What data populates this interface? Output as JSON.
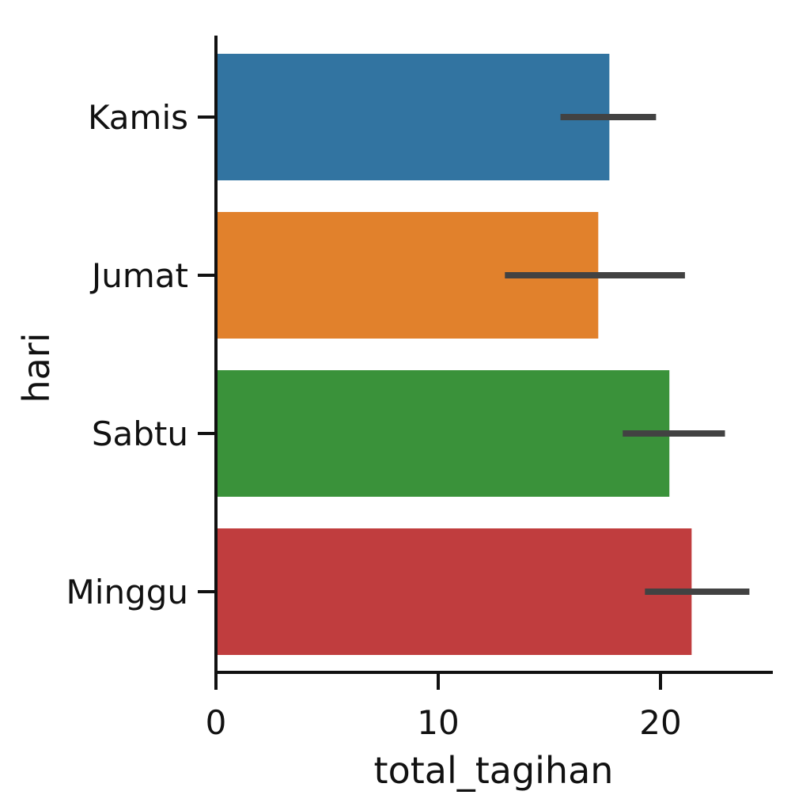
{
  "chart_data": {
    "type": "bar",
    "orientation": "horizontal",
    "title": "",
    "xlabel": "total_tagihan",
    "ylabel": "hari",
    "categories": [
      "Kamis",
      "Jumat",
      "Sabtu",
      "Minggu"
    ],
    "values": [
      17.7,
      17.2,
      20.4,
      21.4
    ],
    "error_low": [
      15.5,
      13.0,
      18.3,
      19.3
    ],
    "error_high": [
      19.8,
      21.1,
      22.9,
      24.0
    ],
    "colors": [
      "#3274a1",
      "#e1812c",
      "#3a923a",
      "#c03d3e"
    ],
    "error_color": "#424242",
    "xlim": [
      0,
      25
    ],
    "xticks": [
      0,
      10,
      20
    ],
    "xtick_labels": [
      "0",
      "10",
      "20"
    ],
    "grid": false,
    "legend": "none"
  }
}
